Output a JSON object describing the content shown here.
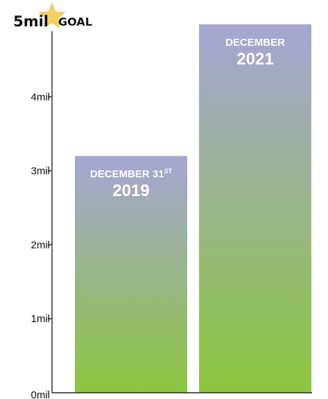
{
  "chart_data": {
    "type": "bar",
    "categories": [
      "December 31st 2019",
      "December 2021"
    ],
    "values": [
      3.2,
      4.98
    ],
    "unit": "mil",
    "ylim": [
      0,
      5
    ],
    "yticks": [
      0,
      1,
      2,
      3,
      4
    ],
    "ytick_labels": [
      "0mil",
      "1mil",
      "2mil",
      "3mil",
      "4mil"
    ],
    "grid": false,
    "goal": {
      "value_label": "5mil",
      "label": "GOAL",
      "value": 5
    },
    "bar_labels": [
      {
        "line1": "DECEMBER 31",
        "sup": "ST",
        "line2": "2019"
      },
      {
        "line1": "DECEMBER",
        "sup": "",
        "line2": "2021"
      }
    ]
  },
  "colors": {
    "bar_top": "#a6a5d4",
    "bar_bottom": "#8cc63f",
    "axis": "#222222",
    "star": "#f5d060",
    "text": "#111111"
  }
}
